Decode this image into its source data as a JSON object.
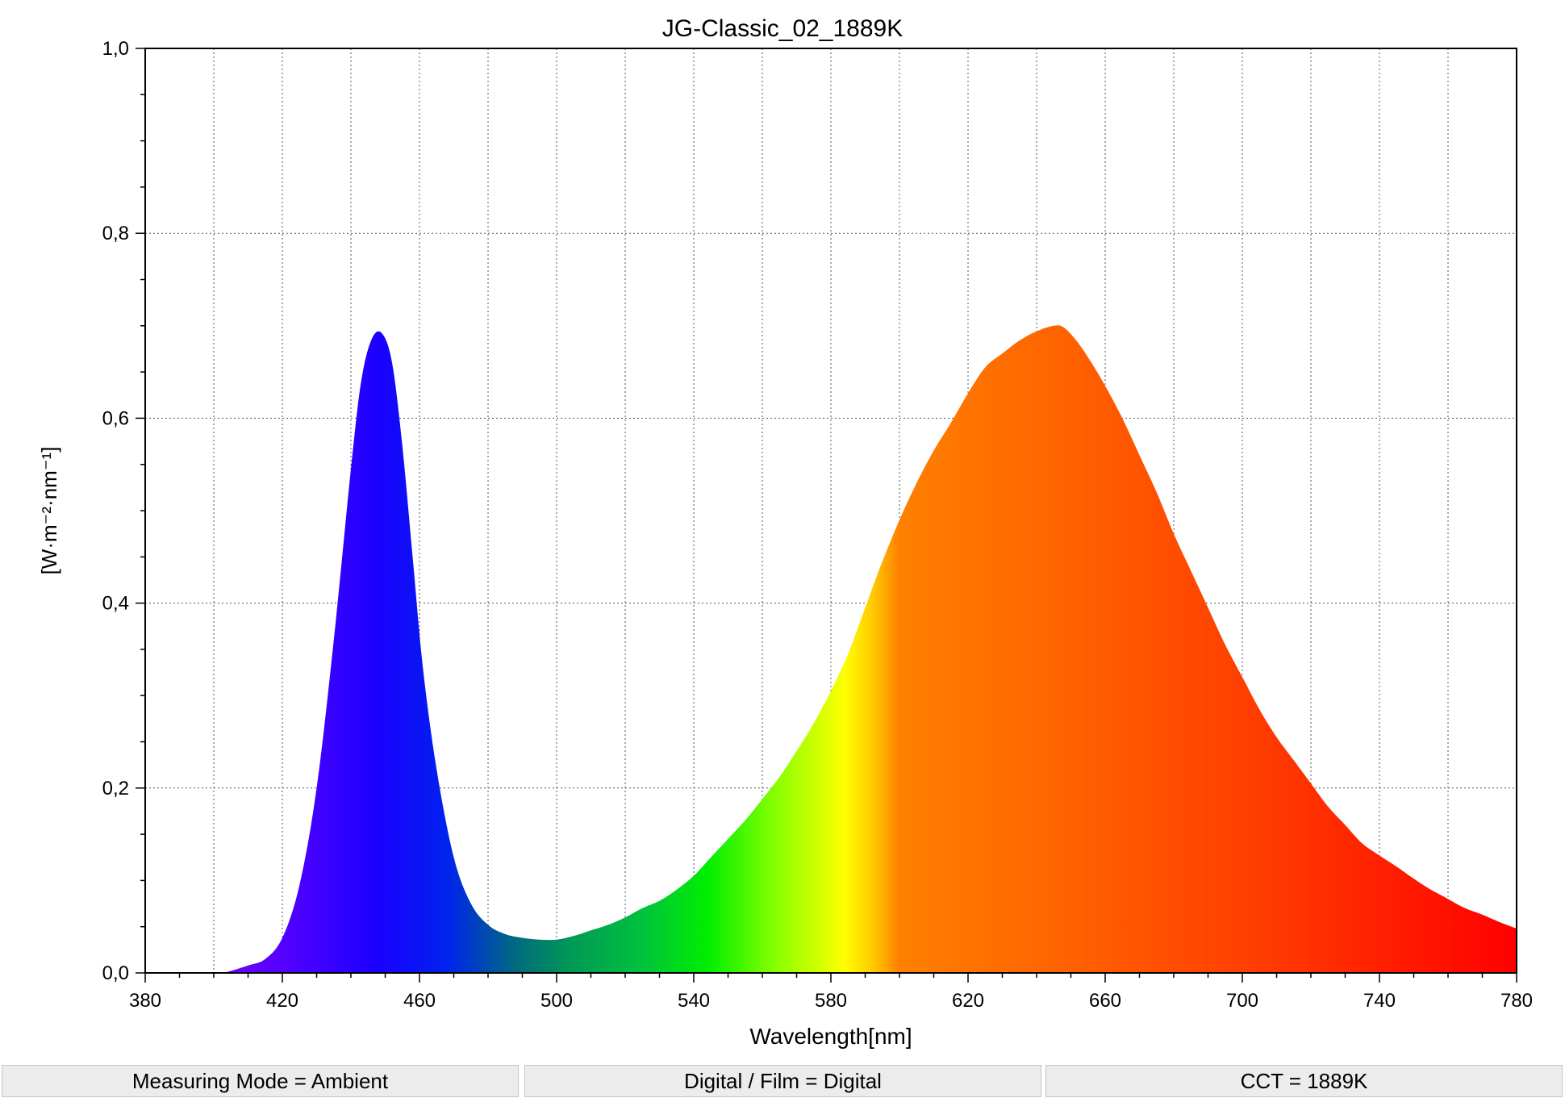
{
  "chart_data": {
    "type": "area",
    "title": "JG-Classic_02_1889K",
    "xlabel": "Wavelength[nm]",
    "ylabel": "[W·m⁻²·nm⁻¹]",
    "xlim": [
      380,
      780
    ],
    "ylim": [
      0,
      1.0
    ],
    "x_ticks": [
      380,
      420,
      460,
      500,
      540,
      580,
      620,
      660,
      700,
      740,
      780
    ],
    "x_tick_labels": [
      "380",
      "420",
      "460",
      "500",
      "540",
      "580",
      "620",
      "660",
      "700",
      "740",
      "780"
    ],
    "y_ticks": [
      0,
      0.2,
      0.4,
      0.6,
      0.8,
      1.0
    ],
    "y_tick_labels": [
      "0,0",
      "0,2",
      "0,4",
      "0,6",
      "0,8",
      "1,0"
    ],
    "grid": true,
    "fill": "visible-spectrum gradient",
    "series": [
      {
        "x": [
          403,
          410,
          415,
          420,
          425,
          430,
          435,
          440,
          443,
          446,
          449,
          452,
          455,
          458,
          461,
          465,
          470,
          475,
          480,
          485,
          490,
          495,
          500,
          505,
          510,
          515,
          520,
          525,
          530,
          535,
          540,
          545,
          550,
          555,
          560,
          565,
          570,
          575,
          580,
          585,
          590,
          595,
          600,
          605,
          610,
          615,
          620,
          625,
          630,
          635,
          640,
          645,
          648,
          652,
          656,
          660,
          665,
          670,
          675,
          680,
          685,
          690,
          695,
          700,
          705,
          710,
          715,
          720,
          725,
          730,
          735,
          740,
          745,
          750,
          755,
          760,
          765,
          770,
          775,
          780
        ],
        "y": [
          0.0,
          0.008,
          0.015,
          0.038,
          0.095,
          0.2,
          0.36,
          0.545,
          0.64,
          0.685,
          0.692,
          0.66,
          0.57,
          0.45,
          0.33,
          0.22,
          0.125,
          0.075,
          0.052,
          0.042,
          0.038,
          0.036,
          0.036,
          0.04,
          0.046,
          0.052,
          0.06,
          0.07,
          0.078,
          0.09,
          0.105,
          0.125,
          0.145,
          0.165,
          0.188,
          0.212,
          0.24,
          0.27,
          0.305,
          0.345,
          0.395,
          0.445,
          0.49,
          0.53,
          0.565,
          0.595,
          0.627,
          0.655,
          0.67,
          0.684,
          0.694,
          0.7,
          0.698,
          0.682,
          0.66,
          0.635,
          0.6,
          0.56,
          0.52,
          0.475,
          0.435,
          0.395,
          0.355,
          0.32,
          0.285,
          0.255,
          0.23,
          0.205,
          0.18,
          0.16,
          0.14,
          0.127,
          0.115,
          0.102,
          0.09,
          0.08,
          0.07,
          0.063,
          0.055,
          0.048
        ]
      }
    ]
  },
  "status": {
    "measuring_mode": "Measuring Mode = Ambient",
    "digital_film": "Digital / Film = Digital",
    "cct": "CCT = 1889K"
  }
}
